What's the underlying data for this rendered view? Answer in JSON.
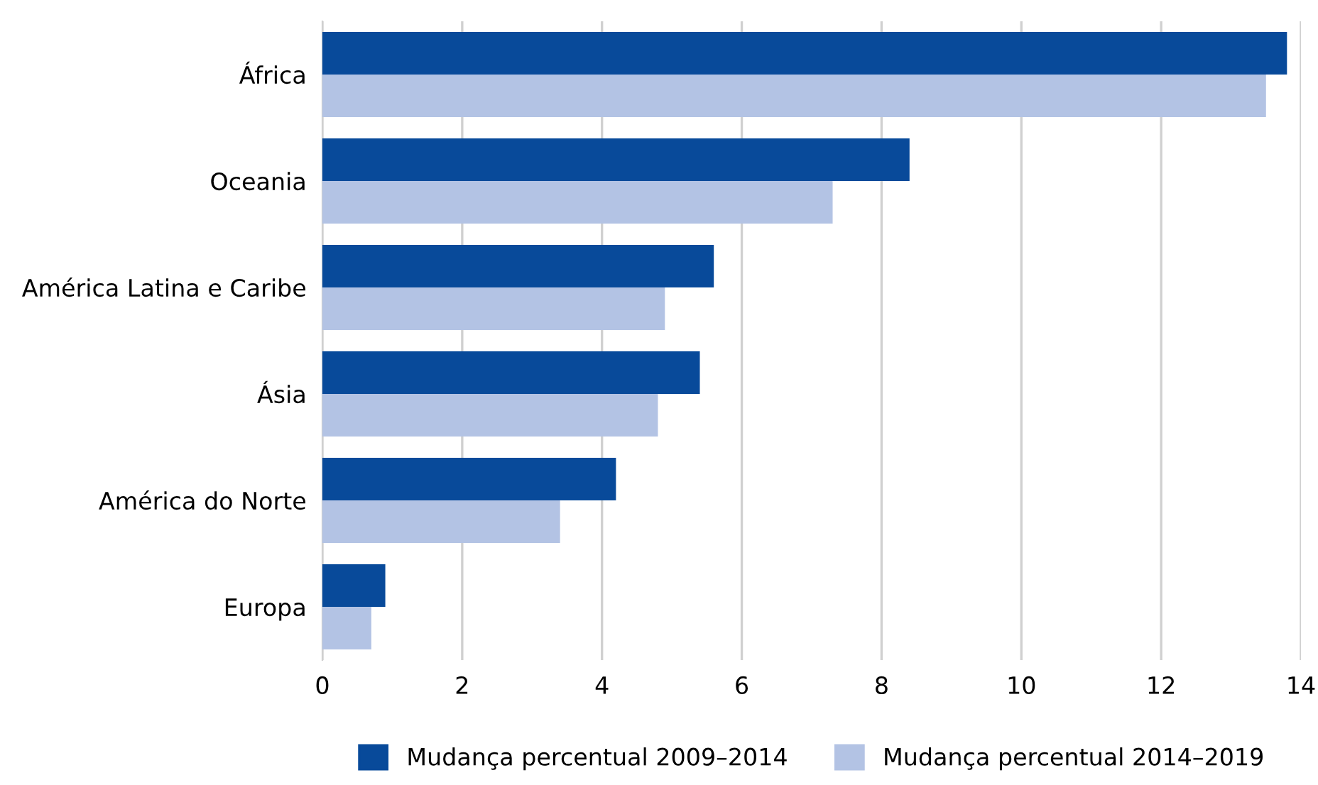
{
  "chart_data": {
    "type": "bar",
    "orientation": "horizontal",
    "categories": [
      "África",
      "Oceania",
      "América Latina e Caribe",
      "Ásia",
      "América do Norte",
      "Europa"
    ],
    "series": [
      {
        "name": "Mudança percentual 2009–2014",
        "color": "#084a9a",
        "values": [
          13.8,
          8.4,
          5.6,
          5.4,
          4.2,
          0.9
        ]
      },
      {
        "name": "Mudança percentual 2014–2019",
        "color": "#b3c3e4",
        "values": [
          13.5,
          7.3,
          4.9,
          4.8,
          3.4,
          0.7
        ]
      }
    ],
    "xlim": [
      0,
      14
    ],
    "xticks": [
      0,
      2,
      4,
      6,
      8,
      10,
      12,
      14
    ],
    "grid": "x",
    "legend": "bottom"
  }
}
